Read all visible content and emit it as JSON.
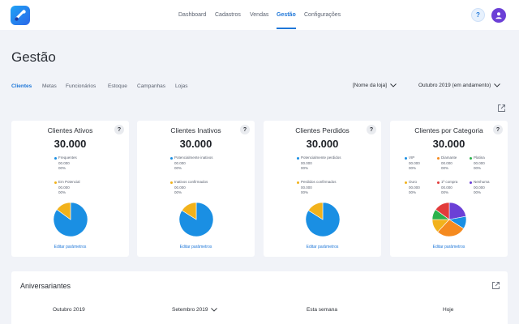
{
  "header": {
    "nav": [
      "Dashboard",
      "Cadastros",
      "Vendas",
      "Gestão",
      "Configurações"
    ],
    "active_nav": "Gestão",
    "help_label": "?"
  },
  "page": {
    "title": "Gestão"
  },
  "tabs": [
    "Clientes",
    "Metas",
    "Funcionários",
    "Estoque",
    "Campanhas",
    "Lojas"
  ],
  "filters": {
    "store": "[Nome da loja]",
    "period": "Outubro 2019 (em andamento)"
  },
  "cards": [
    {
      "title": "Clientes Ativos",
      "help": "?",
      "total": "30.000",
      "legend": [
        {
          "label": "Frequentes",
          "count": "00.000",
          "pct": "00%",
          "color": "#1a8fe3"
        },
        {
          "label": "Em Potencial",
          "count": "00.000",
          "pct": "00%",
          "color": "#f2b21b"
        }
      ],
      "pie": [
        0.85,
        0.15
      ],
      "link": "Editar parâmetros"
    },
    {
      "title": "Clientes Inativos",
      "help": "?",
      "total": "30.000",
      "legend": [
        {
          "label": "Potencialmente inativos",
          "count": "00.000",
          "pct": "00%",
          "color": "#1a8fe3"
        },
        {
          "label": "Inativos confirmados",
          "count": "00.000",
          "pct": "00%",
          "color": "#f2b21b"
        }
      ],
      "pie": [
        0.84,
        0.16
      ],
      "link": "Editar parâmetros"
    },
    {
      "title": "Clientes Perdidos",
      "help": "?",
      "total": "30.000",
      "legend": [
        {
          "label": "Potencialmente perdidos",
          "count": "00.000",
          "pct": "00%",
          "color": "#1a8fe3"
        },
        {
          "label": "Perdidos confirmados",
          "count": "00.000",
          "pct": "00%",
          "color": "#f2b21b"
        }
      ],
      "pie": [
        0.84,
        0.16
      ],
      "link": "Editar parâmetros"
    },
    {
      "title": "Clientes por Categoria",
      "help": "?",
      "total": "30.000",
      "legend": [
        {
          "label": "VIP",
          "count": "00.000",
          "pct": "00%",
          "color": "#1a8fe3"
        },
        {
          "label": "Diamante",
          "count": "00.000",
          "pct": "00%",
          "color": "#f58a1f"
        },
        {
          "label": "Platina",
          "count": "00.000",
          "pct": "00%",
          "color": "#2bb24c"
        },
        {
          "label": "Ouro",
          "count": "00.000",
          "pct": "00%",
          "color": "#f2b21b"
        },
        {
          "label": "1ª compra",
          "count": "00.000",
          "pct": "00%",
          "color": "#e23b3b"
        },
        {
          "label": "Nenhuma",
          "count": "00.000",
          "pct": "00%",
          "color": "#6b3fd6"
        }
      ],
      "pie": [
        0.22,
        0.12,
        0.28,
        0.13,
        0.1,
        0.15
      ],
      "pie_colors": [
        "#6b3fd6",
        "#1a8fe3",
        "#f58a1f",
        "#f2b21b",
        "#2bb24c",
        "#e23b3b"
      ],
      "link": "Editar parâmetros"
    }
  ],
  "birthday": {
    "title": "Aniversariantes",
    "columns": [
      "Outubro 2019",
      "Setembro 2019",
      "Esta semana",
      "Hoje"
    ]
  }
}
